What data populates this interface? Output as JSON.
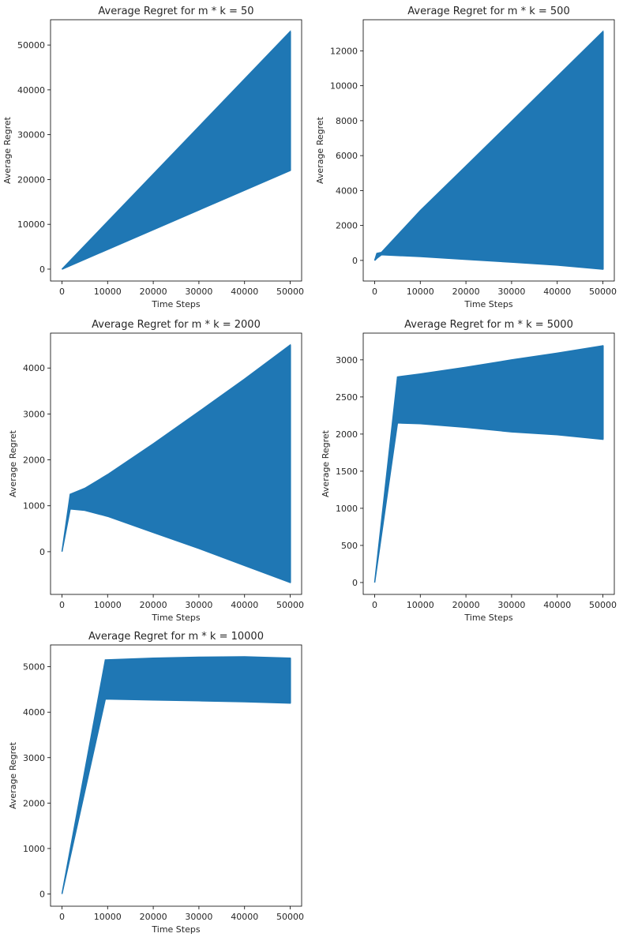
{
  "chart_data": [
    {
      "type": "area",
      "title": "Average Regret for m * k = 50",
      "xlabel": "Time Steps",
      "ylabel": "Average Regret",
      "xlim": [
        -2500,
        52500
      ],
      "ylim": [
        -2650,
        55650
      ],
      "xticks": [
        0,
        10000,
        20000,
        30000,
        40000,
        50000
      ],
      "yticks": [
        0,
        10000,
        20000,
        30000,
        40000,
        50000
      ],
      "color": "#1f77b4",
      "series": [
        {
          "x": [
            0,
            50000
          ],
          "upper": [
            0,
            53000
          ],
          "lower": [
            0,
            22000
          ]
        }
      ]
    },
    {
      "type": "area",
      "title": "Average Regret for m * k = 500",
      "xlabel": "Time Steps",
      "ylabel": "Average Regret",
      "xlim": [
        -2500,
        52500
      ],
      "ylim": [
        -1180,
        13780
      ],
      "xticks": [
        0,
        10000,
        20000,
        30000,
        40000,
        50000
      ],
      "yticks": [
        0,
        2000,
        4000,
        6000,
        8000,
        10000,
        12000
      ],
      "color": "#1f77b4",
      "series": [
        {
          "x": [
            0,
            500,
            1500,
            10000,
            20000,
            30000,
            40000,
            50000
          ],
          "upper": [
            0,
            400,
            460,
            2850,
            5400,
            7960,
            10530,
            13100
          ],
          "lower": [
            0,
            120,
            320,
            220,
            60,
            -100,
            -270,
            -500
          ]
        }
      ]
    },
    {
      "type": "area",
      "title": "Average Regret for m * k = 2000",
      "xlabel": "Time Steps",
      "ylabel": "Average Regret",
      "xlim": [
        -2500,
        52500
      ],
      "ylim": [
        -930,
        4760
      ],
      "xticks": [
        0,
        10000,
        20000,
        30000,
        40000,
        50000
      ],
      "yticks": [
        0,
        1000,
        2000,
        3000,
        4000
      ],
      "color": "#1f77b4",
      "series": [
        {
          "x": [
            0,
            1800,
            5000,
            10000,
            20000,
            30000,
            40000,
            50000
          ],
          "upper": [
            0,
            1250,
            1380,
            1680,
            2350,
            3050,
            3760,
            4500
          ],
          "lower": [
            0,
            930,
            900,
            770,
            420,
            70,
            -300,
            -670
          ]
        }
      ]
    },
    {
      "type": "area",
      "title": "Average Regret for m * k = 5000",
      "xlabel": "Time Steps",
      "ylabel": "Average Regret",
      "xlim": [
        -2500,
        52500
      ],
      "ylim": [
        -160,
        3360
      ],
      "xticks": [
        0,
        10000,
        20000,
        30000,
        40000,
        50000
      ],
      "yticks": [
        0,
        500,
        1000,
        1500,
        2000,
        2500,
        3000
      ],
      "color": "#1f77b4",
      "series": [
        {
          "x": [
            0,
            5000,
            10000,
            20000,
            30000,
            40000,
            50000
          ],
          "upper": [
            0,
            2770,
            2810,
            2900,
            3000,
            3090,
            3190
          ],
          "lower": [
            0,
            2150,
            2140,
            2090,
            2030,
            1990,
            1930
          ]
        }
      ]
    },
    {
      "type": "area",
      "title": "Average Regret for m * k = 10000",
      "xlabel": "Time Steps",
      "ylabel": "Average Regret",
      "xlim": [
        -2500,
        52500
      ],
      "ylim": [
        -270,
        5480
      ],
      "xticks": [
        0,
        10000,
        20000,
        30000,
        40000,
        50000
      ],
      "yticks": [
        0,
        1000,
        2000,
        3000,
        4000,
        5000
      ],
      "color": "#1f77b4",
      "series": [
        {
          "x": [
            0,
            9500,
            20000,
            30000,
            40000,
            50000
          ],
          "upper": [
            0,
            5150,
            5190,
            5210,
            5220,
            5190
          ],
          "lower": [
            0,
            4290,
            4270,
            4250,
            4230,
            4200
          ]
        }
      ]
    }
  ]
}
